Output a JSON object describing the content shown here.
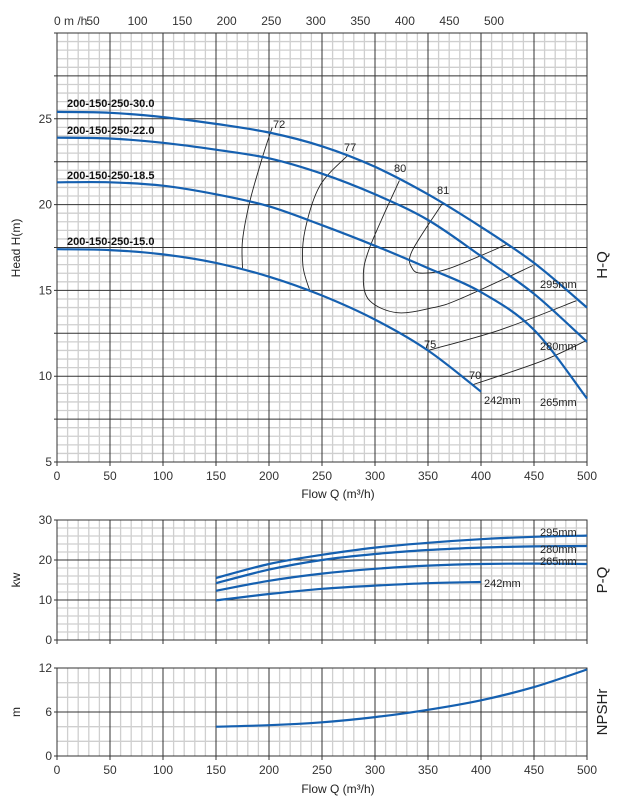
{
  "colors": {
    "curve": "#1560b0",
    "major_grid": "#333333",
    "minor_grid": "#cfcfcf",
    "eff_line": "#222222"
  },
  "top_axis": {
    "unit_label": "0 m /h",
    "ticks": [
      50,
      100,
      150,
      200,
      250,
      300,
      350,
      400,
      450,
      500
    ]
  },
  "chart_data": [
    {
      "type": "line",
      "id": "hq",
      "title": "H-Q",
      "xlabel": "Flow Q (m³/h)",
      "ylabel": "Head H(m)",
      "xlim": [
        0,
        500
      ],
      "ylim": [
        5,
        30
      ],
      "xticks": [
        0,
        50,
        100,
        150,
        200,
        250,
        300,
        350,
        400,
        450,
        500
      ],
      "yticks": [
        5,
        10,
        15,
        20,
        25
      ],
      "grid": true,
      "model_labels": [
        "200-150-250-30.0",
        "200-150-250-22.0",
        "200-150-250-18.5",
        "200-150-250-15.0"
      ],
      "series": [
        {
          "name": "295mm",
          "x": [
            0,
            50,
            100,
            150,
            200,
            250,
            300,
            350,
            400,
            450,
            500
          ],
          "y": [
            25.4,
            25.35,
            25.1,
            24.7,
            24.2,
            23.4,
            22.2,
            20.6,
            18.7,
            16.6,
            14.0
          ]
        },
        {
          "name": "280mm",
          "x": [
            0,
            50,
            100,
            150,
            200,
            250,
            300,
            350,
            400,
            450,
            500
          ],
          "y": [
            23.9,
            23.85,
            23.6,
            23.2,
            22.7,
            21.8,
            20.6,
            19.1,
            17.0,
            14.8,
            12.0
          ]
        },
        {
          "name": "265mm",
          "x": [
            0,
            50,
            100,
            150,
            200,
            250,
            300,
            350,
            400,
            450,
            500
          ],
          "y": [
            21.3,
            21.3,
            21.1,
            20.6,
            19.9,
            18.8,
            17.6,
            16.3,
            14.9,
            12.7,
            8.7
          ]
        },
        {
          "name": "242mm",
          "x": [
            0,
            50,
            100,
            150,
            200,
            250,
            300,
            350,
            400
          ],
          "y": [
            17.4,
            17.35,
            17.1,
            16.6,
            15.8,
            14.7,
            13.3,
            11.5,
            9.1
          ]
        }
      ],
      "efficiency_lines": [
        {
          "name": "72",
          "points": [
            [
              203,
              24.5
            ],
            [
              193,
              22.6
            ],
            [
              182,
              20.2
            ],
            [
              175,
              17.9
            ],
            [
              175,
              16.3
            ]
          ]
        },
        {
          "name": "77",
          "points": [
            [
              274,
              22.85
            ],
            [
              248,
              21.1
            ],
            [
              234,
              18.5
            ],
            [
              232,
              16.45
            ],
            [
              239,
              14.9
            ]
          ]
        },
        {
          "name": "80",
          "points": [
            [
              323,
              21.4
            ],
            [
              295,
              17.5
            ],
            [
              289,
              15.75
            ],
            [
              295,
              14.4
            ],
            [
              321,
              13.7
            ],
            [
              355,
              14.0
            ],
            [
              380,
              14.5
            ],
            [
              449,
              16.45
            ]
          ]
        },
        {
          "name": "81",
          "points": [
            [
              364,
              20.1
            ],
            [
              335,
              17.3
            ],
            [
              335,
              16.3
            ],
            [
              345,
              16.0
            ],
            [
              371,
              16.3
            ],
            [
              425,
              17.7
            ]
          ]
        },
        {
          "name": "75",
          "points": [
            [
              350,
              11.5
            ],
            [
              418,
              12.7
            ],
            [
              490,
              14.4
            ]
          ]
        },
        {
          "name": "70",
          "points": [
            [
              392,
              9.5
            ],
            [
              458,
              10.9
            ],
            [
              500,
              12.1
            ]
          ]
        }
      ]
    },
    {
      "type": "line",
      "id": "pq",
      "title": "P-Q",
      "ylabel": "kw",
      "xlim": [
        0,
        500
      ],
      "ylim": [
        0,
        30
      ],
      "yticks": [
        0,
        10,
        20,
        30
      ],
      "grid": true,
      "series": [
        {
          "name": "295mm",
          "x": [
            150,
            200,
            250,
            300,
            350,
            400,
            450,
            500
          ],
          "y": [
            15.5,
            19.0,
            21.3,
            23.1,
            24.3,
            25.2,
            25.8,
            26.1
          ]
        },
        {
          "name": "280mm",
          "x": [
            150,
            200,
            250,
            300,
            350,
            400,
            450,
            500
          ],
          "y": [
            14.2,
            17.6,
            20.0,
            21.5,
            22.5,
            23.1,
            23.4,
            23.5
          ]
        },
        {
          "name": "265mm",
          "x": [
            150,
            200,
            250,
            300,
            350,
            400,
            450,
            500
          ],
          "y": [
            12.3,
            14.8,
            16.6,
            17.8,
            18.6,
            19.0,
            19.1,
            19.0
          ]
        },
        {
          "name": "242mm",
          "x": [
            150,
            200,
            250,
            300,
            350,
            400
          ],
          "y": [
            9.9,
            11.5,
            12.8,
            13.6,
            14.2,
            14.5
          ]
        }
      ]
    },
    {
      "type": "line",
      "id": "npsh",
      "title": "NPSHr",
      "xlabel": "Flow Q (m³/h)",
      "ylabel": "m",
      "xlim": [
        0,
        500
      ],
      "ylim": [
        0,
        12
      ],
      "xticks": [
        0,
        50,
        100,
        150,
        200,
        250,
        300,
        350,
        400,
        450,
        500
      ],
      "yticks": [
        0,
        6,
        12
      ],
      "grid": true,
      "series": [
        {
          "name": "NPSHr",
          "x": [
            150,
            200,
            250,
            300,
            350,
            400,
            450,
            500
          ],
          "y": [
            4.0,
            4.2,
            4.6,
            5.3,
            6.3,
            7.6,
            9.4,
            11.8
          ]
        }
      ]
    }
  ]
}
